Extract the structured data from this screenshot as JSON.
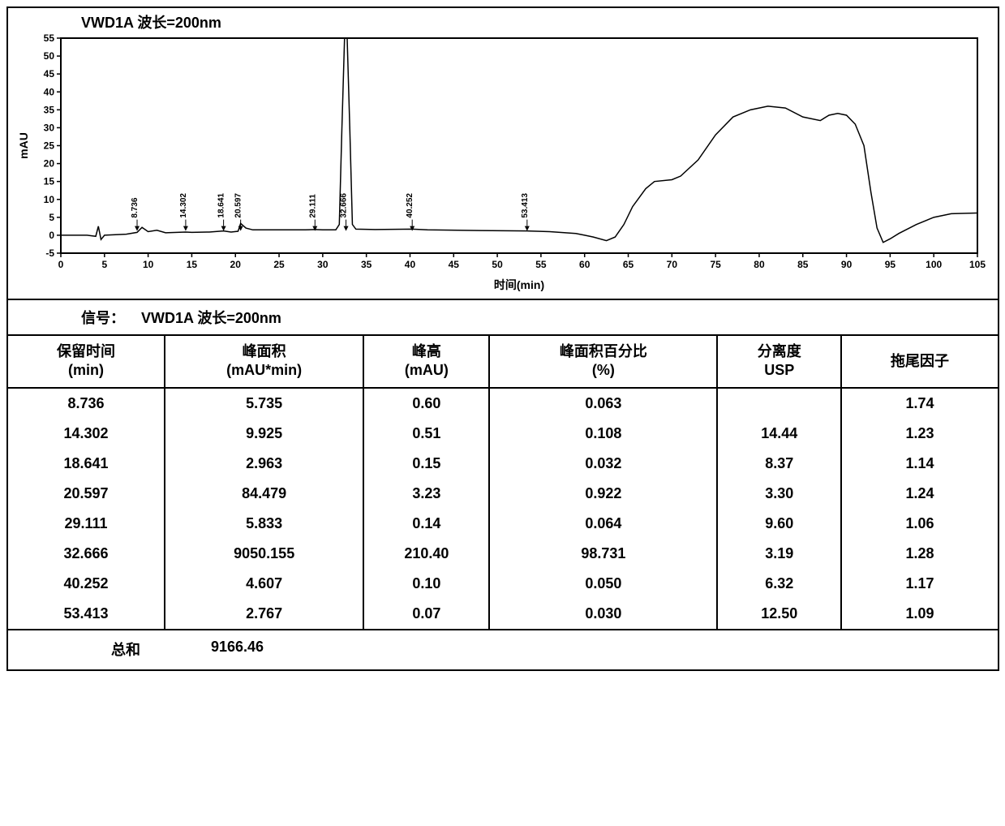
{
  "chart": {
    "title": "VWD1A 波长=200nm",
    "x_label": "时间(min)",
    "y_label": "mAU",
    "x_range": [
      0,
      105
    ],
    "y_range": [
      -5,
      55
    ],
    "x_ticks": [
      0,
      5,
      10,
      15,
      20,
      25,
      30,
      35,
      40,
      45,
      50,
      55,
      60,
      65,
      70,
      75,
      80,
      85,
      90,
      95,
      100,
      105
    ],
    "y_ticks": [
      -5,
      0,
      5,
      10,
      15,
      20,
      25,
      30,
      35,
      40,
      45,
      50,
      55
    ],
    "plot_bg": "#ffffff",
    "axis_color": "#000000",
    "line_color": "#000000",
    "line_width": 1.5,
    "tick_fontsize": 12,
    "label_fontsize": 14,
    "peak_label_fontsize": 10,
    "peak_labels": [
      {
        "x": 8.736,
        "text": "8.736"
      },
      {
        "x": 14.302,
        "text": "14.302"
      },
      {
        "x": 18.641,
        "text": "18.641"
      },
      {
        "x": 20.597,
        "text": "20.597"
      },
      {
        "x": 29.111,
        "text": "29.111"
      },
      {
        "x": 32.666,
        "text": "32.666"
      },
      {
        "x": 40.252,
        "text": "40.252"
      },
      {
        "x": 53.413,
        "text": "53.413"
      }
    ],
    "trace": [
      [
        0,
        0
      ],
      [
        3,
        0
      ],
      [
        4,
        -0.3
      ],
      [
        4.3,
        2.5
      ],
      [
        4.6,
        -1.2
      ],
      [
        5,
        0
      ],
      [
        7.5,
        0.3
      ],
      [
        8.736,
        0.8
      ],
      [
        9.3,
        2.2
      ],
      [
        10,
        1.0
      ],
      [
        11,
        1.4
      ],
      [
        12,
        0.7
      ],
      [
        14.302,
        0.9
      ],
      [
        15,
        0.8
      ],
      [
        17,
        0.9
      ],
      [
        18.641,
        1.2
      ],
      [
        19.5,
        0.9
      ],
      [
        20.3,
        1.1
      ],
      [
        20.597,
        3.3
      ],
      [
        21.2,
        2.0
      ],
      [
        22,
        1.5
      ],
      [
        25,
        1.5
      ],
      [
        28,
        1.5
      ],
      [
        29.111,
        1.6
      ],
      [
        30,
        1.5
      ],
      [
        31.5,
        1.5
      ],
      [
        31.9,
        3
      ],
      [
        32.2,
        30
      ],
      [
        32.5,
        55
      ],
      [
        32.8,
        55
      ],
      [
        33.1,
        30
      ],
      [
        33.4,
        3
      ],
      [
        33.8,
        1.7
      ],
      [
        36,
        1.6
      ],
      [
        40.252,
        1.7
      ],
      [
        42,
        1.5
      ],
      [
        48,
        1.3
      ],
      [
        53.413,
        1.2
      ],
      [
        56,
        1.0
      ],
      [
        59,
        0.5
      ],
      [
        60,
        0
      ],
      [
        61,
        -0.5
      ],
      [
        62.5,
        -1.5
      ],
      [
        63.5,
        -0.5
      ],
      [
        64.5,
        3
      ],
      [
        65.5,
        8
      ],
      [
        67,
        13
      ],
      [
        68,
        15
      ],
      [
        70,
        15.5
      ],
      [
        71,
        16.5
      ],
      [
        73,
        21
      ],
      [
        75,
        28
      ],
      [
        77,
        33
      ],
      [
        79,
        35
      ],
      [
        81,
        36
      ],
      [
        83,
        35.5
      ],
      [
        85,
        33
      ],
      [
        87,
        32
      ],
      [
        88,
        33.5
      ],
      [
        89,
        34
      ],
      [
        90,
        33.5
      ],
      [
        91,
        31
      ],
      [
        92,
        25
      ],
      [
        92.8,
        12
      ],
      [
        93.5,
        2
      ],
      [
        94.2,
        -2
      ],
      [
        95,
        -1
      ],
      [
        96,
        0.5
      ],
      [
        98,
        3
      ],
      [
        100,
        5
      ],
      [
        102,
        6
      ],
      [
        105,
        6.2
      ]
    ]
  },
  "signal": {
    "label": "信号：",
    "value": "VWD1A 波长=200nm"
  },
  "table": {
    "columns": [
      {
        "line1": "保留时间",
        "line2": "(min)"
      },
      {
        "line1": "峰面积",
        "line2": "(mAU*min)"
      },
      {
        "line1": "峰高",
        "line2": "(mAU)"
      },
      {
        "line1": "峰面积百分比",
        "line2": "(%)"
      },
      {
        "line1": "分离度",
        "line2": "USP"
      },
      {
        "line1": "拖尾因子",
        "line2": ""
      }
    ],
    "rows": [
      [
        "8.736",
        "5.735",
        "0.60",
        "0.063",
        "",
        "1.74"
      ],
      [
        "14.302",
        "9.925",
        "0.51",
        "0.108",
        "14.44",
        "1.23"
      ],
      [
        "18.641",
        "2.963",
        "0.15",
        "0.032",
        "8.37",
        "1.14"
      ],
      [
        "20.597",
        "84.479",
        "3.23",
        "0.922",
        "3.30",
        "1.24"
      ],
      [
        "29.111",
        "5.833",
        "0.14",
        "0.064",
        "9.60",
        "1.06"
      ],
      [
        "32.666",
        "9050.155",
        "210.40",
        "98.731",
        "3.19",
        "1.28"
      ],
      [
        "40.252",
        "4.607",
        "0.10",
        "0.050",
        "6.32",
        "1.17"
      ],
      [
        "53.413",
        "2.767",
        "0.07",
        "0.030",
        "12.50",
        "1.09"
      ]
    ],
    "totals": {
      "label": "总和",
      "value": "9166.46"
    }
  }
}
